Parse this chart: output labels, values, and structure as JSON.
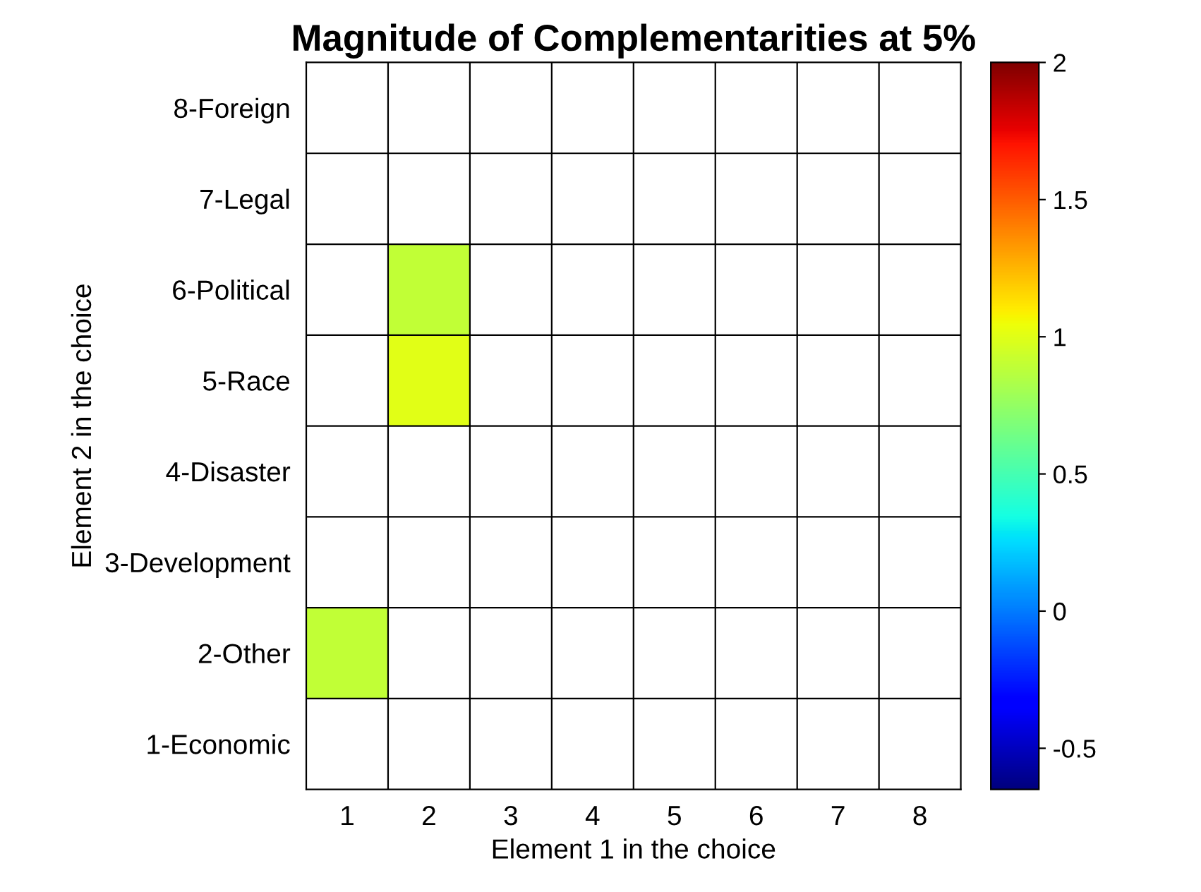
{
  "chart_data": {
    "type": "heatmap",
    "title": "Magnitude of Complementarities at 5%",
    "xlabel": "Element 1 in the choice",
    "ylabel": "Element 2 in the choice",
    "categories": [
      "1",
      "2",
      "3",
      "4",
      "5",
      "6",
      "7",
      "8"
    ],
    "y_categories": [
      "8-Foreign",
      "7-Legal",
      "6-Political",
      "5-Race",
      "4-Disaster",
      "3-Development",
      "2-Other",
      "1-Economic"
    ],
    "cells": [
      [
        null,
        null,
        null,
        null,
        null,
        null,
        null,
        null
      ],
      [
        null,
        null,
        null,
        null,
        null,
        null,
        null,
        null
      ],
      [
        null,
        0.9,
        null,
        null,
        null,
        null,
        null,
        null
      ],
      [
        null,
        1.0,
        null,
        null,
        null,
        null,
        null,
        null
      ],
      [
        null,
        null,
        null,
        null,
        null,
        null,
        null,
        null
      ],
      [
        null,
        null,
        null,
        null,
        null,
        null,
        null,
        null
      ],
      [
        0.9,
        null,
        null,
        null,
        null,
        null,
        null,
        null
      ],
      [
        null,
        null,
        null,
        null,
        null,
        null,
        null,
        null
      ]
    ],
    "clim": [
      -0.65,
      2
    ],
    "cticks": [
      -0.5,
      0,
      0.5,
      1,
      1.5,
      2
    ],
    "grid": true
  }
}
